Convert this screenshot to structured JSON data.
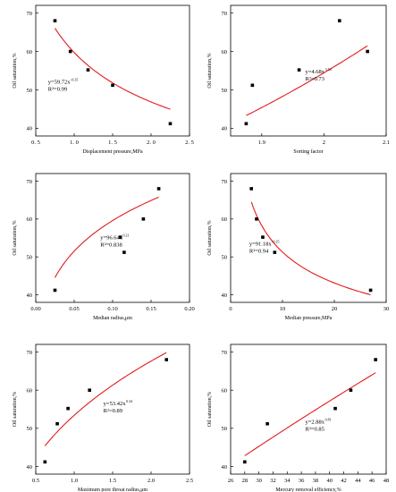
{
  "chart_data": [
    {
      "type": "scatter",
      "xlabel": "Displacement pressure,MPa",
      "ylabel": "Oil saturation,%",
      "xlim": [
        0.5,
        2.5
      ],
      "ylim": [
        38,
        72
      ],
      "xticks": [
        "0. 5",
        "1. 0",
        "1. 5",
        "2. 0",
        "2. 5"
      ],
      "xtick_values": [
        0.5,
        1.0,
        1.5,
        2.0,
        2.5
      ],
      "yticks": [
        "40",
        "50",
        "60",
        "70"
      ],
      "ytick_values": [
        40,
        50,
        60,
        70
      ],
      "points": [
        [
          0.75,
          68
        ],
        [
          0.95,
          60
        ],
        [
          1.18,
          55.2
        ],
        [
          1.5,
          51.2
        ],
        [
          2.25,
          41.2
        ]
      ],
      "fit": {
        "kind": "power",
        "a": 59.72,
        "b": -0.35,
        "range": [
          0.75,
          2.25
        ]
      },
      "equation": "y=59.72x",
      "exponent": "-0.35",
      "r2": "R²=0.99"
    },
    {
      "type": "scatter",
      "xlabel": "Sorting factor",
      "ylabel": "Oil saturation,%",
      "xlim": [
        1.85,
        2.1
      ],
      "ylim": [
        38,
        72
      ],
      "xticks": [
        "1.9",
        "2",
        "2.1"
      ],
      "xtick_values": [
        1.9,
        2.0,
        2.1
      ],
      "yticks": [
        "40",
        "50",
        "60",
        "70"
      ],
      "ytick_values": [
        40,
        50,
        60,
        70
      ],
      "points": [
        [
          1.875,
          41.2
        ],
        [
          1.885,
          51.2
        ],
        [
          1.96,
          55.2
        ],
        [
          2.025,
          68
        ],
        [
          2.07,
          60
        ]
      ],
      "fit": {
        "kind": "power",
        "a": 4.68,
        "b": 3.54,
        "range": [
          1.875,
          2.07
        ]
      },
      "equation": "y=4.68x",
      "exponent": "3.54",
      "r2": "R²=0.73"
    },
    {
      "type": "scatter",
      "xlabel": "Median radius,μm",
      "ylabel": "Oil saturation,%",
      "xlim": [
        0.0,
        0.2
      ],
      "ylim": [
        38,
        72
      ],
      "xticks": [
        "0.00",
        "0.05",
        "0.10",
        "0.15",
        "0.20"
      ],
      "xtick_values": [
        0.0,
        0.05,
        0.1,
        0.15,
        0.2
      ],
      "yticks": [
        "40",
        "50",
        "60",
        "70"
      ],
      "ytick_values": [
        40,
        50,
        60,
        70
      ],
      "points": [
        [
          0.025,
          41.2
        ],
        [
          0.11,
          55.2
        ],
        [
          0.115,
          51.2
        ],
        [
          0.14,
          60
        ],
        [
          0.16,
          68
        ]
      ],
      "fit": {
        "kind": "power",
        "a": 96.64,
        "b": 0.21,
        "range": [
          0.025,
          0.16
        ]
      },
      "equation": "y=96.64x",
      "exponent": "0.21",
      "r2": "R²=0.838"
    },
    {
      "type": "scatter",
      "xlabel": "Median pressure,MPa",
      "ylabel": "Oil saturation,%",
      "xlim": [
        0,
        30
      ],
      "ylim": [
        38,
        72
      ],
      "xticks": [
        "0",
        "10",
        "20",
        "30"
      ],
      "xtick_values": [
        0,
        10,
        20,
        30
      ],
      "yticks": [
        "40",
        "50",
        "60",
        "70"
      ],
      "ytick_values": [
        40,
        50,
        60,
        70
      ],
      "points": [
        [
          4,
          68
        ],
        [
          5,
          60
        ],
        [
          6.2,
          55.2
        ],
        [
          8.5,
          51.2
        ],
        [
          27,
          41.2
        ]
      ],
      "fit": {
        "kind": "power",
        "a": 91.18,
        "b": -0.25,
        "range": [
          4,
          27
        ]
      },
      "equation": "y=91.18x",
      "exponent": "-0.25",
      "r2": "R²=0.94"
    },
    {
      "type": "scatter",
      "xlabel": "Maximum pore throat radius,μm",
      "ylabel": "Oil saturation,%",
      "xlim": [
        0.5,
        2.5
      ],
      "ylim": [
        38,
        72
      ],
      "xticks": [
        "0.5",
        "1.0",
        "1.5",
        "2.0",
        "2.5"
      ],
      "xtick_values": [
        0.5,
        1.0,
        1.5,
        2.0,
        2.5
      ],
      "yticks": [
        "40",
        "50",
        "60",
        "70"
      ],
      "ytick_values": [
        40,
        50,
        60,
        70
      ],
      "points": [
        [
          0.62,
          41.2
        ],
        [
          0.78,
          51.2
        ],
        [
          0.92,
          55.2
        ],
        [
          1.2,
          60
        ],
        [
          2.2,
          68
        ]
      ],
      "fit": {
        "kind": "power",
        "a": 53.42,
        "b": 0.34,
        "range": [
          0.62,
          2.2
        ]
      },
      "equation": "y=53.42x",
      "exponent": "0.34",
      "r2": "R²=0.89"
    },
    {
      "type": "scatter",
      "xlabel": "Mercury removal efficiency,%",
      "ylabel": "Oil saturation,%",
      "xlim": [
        26,
        48
      ],
      "ylim": [
        38,
        72
      ],
      "xticks": [
        "26",
        "28",
        "30",
        "32",
        "34",
        "36",
        "38",
        "40",
        "42",
        "44",
        "46",
        "48"
      ],
      "xtick_values": [
        26,
        28,
        30,
        32,
        34,
        36,
        38,
        40,
        42,
        44,
        46,
        48
      ],
      "yticks": [
        "40",
        "50",
        "60",
        "70"
      ],
      "ytick_values": [
        40,
        50,
        60,
        70
      ],
      "points": [
        [
          28,
          41.2
        ],
        [
          31.2,
          51.2
        ],
        [
          40.8,
          55.2
        ],
        [
          43,
          60
        ],
        [
          46.5,
          68
        ]
      ],
      "fit": {
        "kind": "power",
        "a": 2.88,
        "b": 0.81,
        "range": [
          28,
          46.5
        ]
      },
      "equation": "y=2.88x",
      "exponent": "0.81",
      "r2": "R²=0.85"
    }
  ]
}
